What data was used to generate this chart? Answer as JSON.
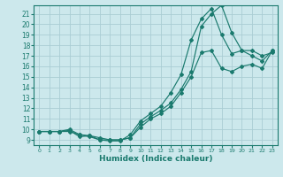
{
  "title": "",
  "xlabel": "Humidex (Indice chaleur)",
  "bg_color": "#cce8ec",
  "grid_color": "#aacdd4",
  "line_color": "#1a7a6e",
  "xlim": [
    -0.5,
    23.5
  ],
  "ylim": [
    8.5,
    21.8
  ],
  "xticks": [
    0,
    1,
    2,
    3,
    4,
    5,
    6,
    7,
    8,
    9,
    10,
    11,
    12,
    13,
    14,
    15,
    16,
    17,
    18,
    19,
    20,
    21,
    22,
    23
  ],
  "yticks": [
    9,
    10,
    11,
    12,
    13,
    14,
    15,
    16,
    17,
    18,
    19,
    20,
    21
  ],
  "line1_x": [
    0,
    1,
    2,
    3,
    4,
    5,
    6,
    7,
    8,
    9,
    10,
    11,
    12,
    13,
    14,
    15,
    16,
    17,
    18,
    19,
    20,
    21,
    22,
    23
  ],
  "line1_y": [
    9.8,
    9.8,
    9.8,
    9.9,
    9.3,
    9.4,
    9.0,
    8.9,
    8.9,
    9.5,
    10.8,
    11.5,
    12.2,
    13.5,
    15.2,
    18.5,
    20.5,
    21.5,
    19.0,
    17.2,
    17.5,
    17.0,
    16.5,
    17.5
  ],
  "line2_x": [
    0,
    1,
    2,
    3,
    4,
    5,
    6,
    7,
    8,
    9,
    10,
    11,
    12,
    13,
    14,
    15,
    16,
    17,
    18,
    19,
    20,
    21,
    22,
    23
  ],
  "line2_y": [
    9.8,
    9.8,
    9.8,
    10.0,
    9.5,
    9.4,
    9.2,
    9.0,
    9.0,
    9.2,
    10.5,
    11.2,
    11.8,
    12.5,
    13.8,
    15.5,
    19.8,
    21.0,
    21.8,
    19.2,
    17.5,
    17.5,
    17.0,
    17.3
  ],
  "line3_x": [
    0,
    1,
    2,
    3,
    4,
    5,
    6,
    7,
    8,
    9,
    10,
    11,
    12,
    13,
    14,
    15,
    16,
    17,
    18,
    19,
    20,
    21,
    22,
    23
  ],
  "line3_y": [
    9.8,
    9.8,
    9.8,
    9.8,
    9.5,
    9.3,
    9.0,
    9.0,
    9.0,
    9.2,
    10.2,
    11.0,
    11.5,
    12.2,
    13.5,
    15.0,
    17.3,
    17.5,
    15.8,
    15.5,
    16.0,
    16.2,
    15.8,
    17.5
  ]
}
